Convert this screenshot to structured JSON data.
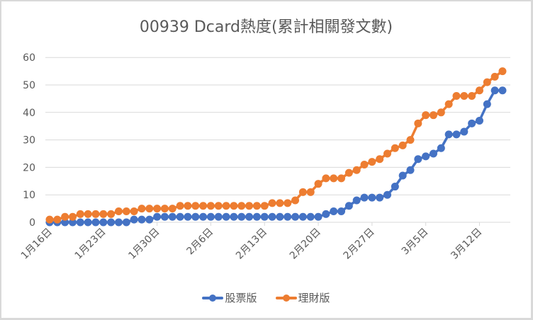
{
  "chart_data": {
    "type": "line",
    "title": "00939 Dcard熱度(累計相關發文數)",
    "xlabel": "",
    "ylabel": "",
    "ylim": [
      0,
      60
    ],
    "yticks": [
      0,
      10,
      20,
      30,
      40,
      50,
      60
    ],
    "grid": true,
    "legend_position": "bottom",
    "x_tick_labels": [
      "1月16日",
      "1月23日",
      "1月30日",
      "2月6日",
      "2月13日",
      "2月20日",
      "2月27日",
      "3月5日",
      "3月12日"
    ],
    "x": [
      "1/16",
      "1/17",
      "1/18",
      "1/19",
      "1/20",
      "1/21",
      "1/22",
      "1/23",
      "1/24",
      "1/25",
      "1/26",
      "1/27",
      "1/28",
      "1/29",
      "1/30",
      "1/31",
      "2/1",
      "2/2",
      "2/3",
      "2/4",
      "2/5",
      "2/6",
      "2/7",
      "2/8",
      "2/9",
      "2/10",
      "2/11",
      "2/12",
      "2/13",
      "2/14",
      "2/15",
      "2/16",
      "2/17",
      "2/18",
      "2/19",
      "2/20",
      "2/21",
      "2/22",
      "2/23",
      "2/24",
      "2/25",
      "2/26",
      "2/27",
      "2/28",
      "2/29",
      "3/1",
      "3/2",
      "3/3",
      "3/4",
      "3/5",
      "3/6",
      "3/7",
      "3/8",
      "3/9",
      "3/10",
      "3/11",
      "3/12",
      "3/13",
      "3/14",
      "3/15"
    ],
    "series": [
      {
        "name": "股票版",
        "color": "#4472C4",
        "values": [
          0,
          0,
          0,
          0,
          0,
          0,
          0,
          0,
          0,
          0,
          0,
          1,
          1,
          1,
          2,
          2,
          2,
          2,
          2,
          2,
          2,
          2,
          2,
          2,
          2,
          2,
          2,
          2,
          2,
          2,
          2,
          2,
          2,
          2,
          2,
          2,
          3,
          4,
          4,
          6,
          8,
          9,
          9,
          9,
          10,
          13,
          17,
          19,
          23,
          24,
          25,
          27,
          32,
          32,
          33,
          36,
          37,
          43,
          48,
          48
        ]
      },
      {
        "name": "理財版",
        "color": "#ED7D31",
        "values": [
          1,
          1,
          2,
          2,
          3,
          3,
          3,
          3,
          3,
          4,
          4,
          4,
          5,
          5,
          5,
          5,
          5,
          6,
          6,
          6,
          6,
          6,
          6,
          6,
          6,
          6,
          6,
          6,
          6,
          7,
          7,
          7,
          8,
          11,
          11,
          14,
          16,
          16,
          16,
          18,
          19,
          21,
          22,
          23,
          25,
          27,
          28,
          30,
          36,
          39,
          39,
          40,
          43,
          46,
          46,
          46,
          48,
          51,
          53,
          55
        ]
      }
    ]
  },
  "legend": {
    "items": [
      {
        "label": "股票版",
        "color": "#4472C4"
      },
      {
        "label": "理財版",
        "color": "#ED7D31"
      }
    ]
  }
}
